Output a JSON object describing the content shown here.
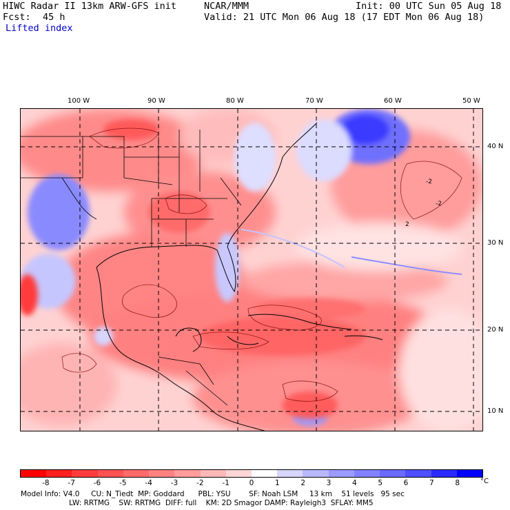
{
  "header": {
    "line1_left": "HIWC Radar II 13km ARW-GFS init",
    "line1_mid": "NCAR/MMM",
    "line1_right": "Init: 00 UTC Sun 05 Aug 18",
    "fcst_label": "Fcst:",
    "fcst_value": "45 h",
    "valid": "Valid: 21 UTC Mon 06 Aug 18 (17 EDT Mon 06 Aug 18)",
    "field": "Lifted index"
  },
  "map": {
    "lon_labels": [
      "100 W",
      "90 W",
      "80 W",
      "70 W",
      "60 W",
      "50 W"
    ],
    "lat_labels": [
      "40 N",
      "30 N",
      "20 N",
      "10 N"
    ],
    "contour_labels": [
      "-2",
      "-2",
      "2"
    ]
  },
  "colorbar": {
    "tick_labels": [
      "-8",
      "-7",
      "-6",
      "-5",
      "-4",
      "-3",
      "-2",
      "-1",
      "0",
      "1",
      "2",
      "3",
      "4",
      "5",
      "6",
      "7",
      "8"
    ],
    "unit": "°C",
    "colors": [
      "#ff0000",
      "#ff2020",
      "#ff3c3c",
      "#ff5252",
      "#ff6a6a",
      "#ff8282",
      "#ff9c9c",
      "#ffb8b8",
      "#ffd6d6",
      "#ffffff",
      "#d6d6ff",
      "#b8b8ff",
      "#9c9cff",
      "#8282ff",
      "#6a6aff",
      "#4f4fff",
      "#2b2bff",
      "#0000ff"
    ]
  },
  "footer": {
    "line1": "Model Info: V4.0     CU: N_Tiedt  MP: Goddard      PBL: YSU        SF: Noah LSM     13 km    51 levels   95 sec",
    "line2": "                     LW: RRTMG    SW: RRTMG  DIFF: full    KM: 2D Smagor DAMP: Rayleigh3  SFLAY: MM5"
  }
}
